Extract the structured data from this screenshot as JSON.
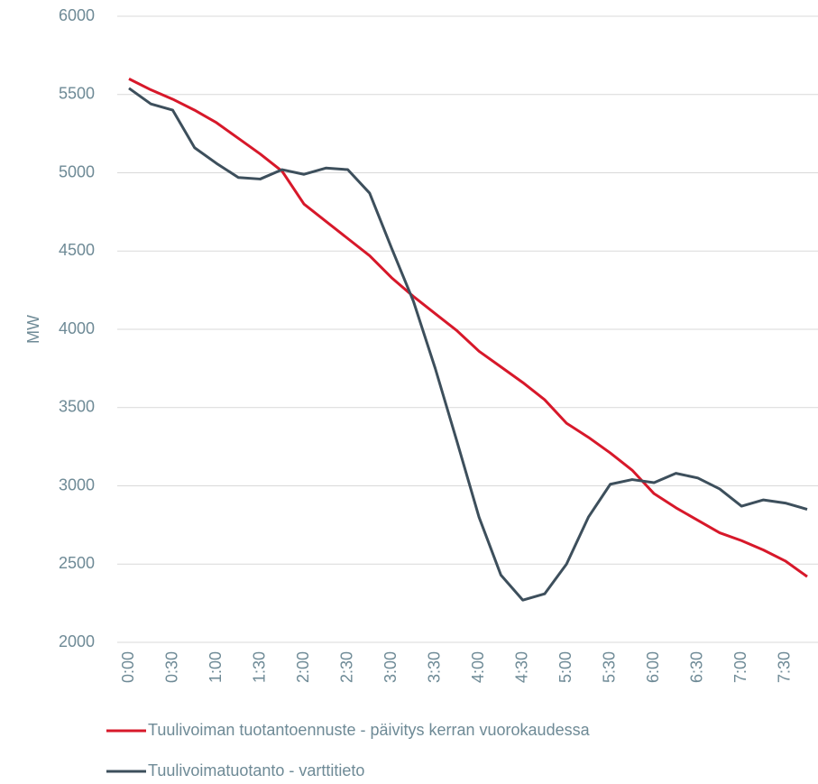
{
  "chart_data": {
    "type": "line",
    "y_label": "MW",
    "categories": [
      "0:00",
      null,
      "0:30",
      null,
      "1:00",
      null,
      "1:30",
      null,
      "2:00",
      null,
      "2:30",
      null,
      "3:00",
      null,
      "3:30",
      null,
      "4:00",
      null,
      "4:30",
      null,
      "5:00",
      null,
      "5:30",
      null,
      "6:00",
      null,
      "6:30",
      null,
      "7:00",
      null,
      "7:30",
      null
    ],
    "series": [
      {
        "name": "Tuulivoiman tuotantoennuste - päivitys kerran vuorokaudessa",
        "color": "#d7182a",
        "values": [
          5600,
          5530,
          5470,
          5400,
          5320,
          5220,
          5120,
          5010,
          4800,
          4690,
          4580,
          4470,
          4330,
          4210,
          4100,
          3990,
          3860,
          3760,
          3660,
          3550,
          3400,
          3310,
          3210,
          3100,
          2950,
          2860,
          2780,
          2700,
          2650,
          2590,
          2520,
          2420
        ]
      },
      {
        "name": "Tuulivoimatuotanto - varttitieto",
        "color": "#3d4f5c",
        "values": [
          5540,
          5440,
          5400,
          5160,
          5060,
          4970,
          4960,
          5020,
          4990,
          5030,
          5020,
          4870,
          4520,
          4180,
          3750,
          3280,
          2800,
          2430,
          2270,
          2310,
          2500,
          2800,
          3010,
          3040,
          3020,
          3080,
          3050,
          2980,
          2870,
          2910,
          2890,
          2850
        ]
      }
    ],
    "ylim": [
      2000,
      6000
    ],
    "yticks": [
      2000,
      2500,
      3000,
      3500,
      4000,
      4500,
      5000,
      5500,
      6000
    ],
    "grid": true
  }
}
